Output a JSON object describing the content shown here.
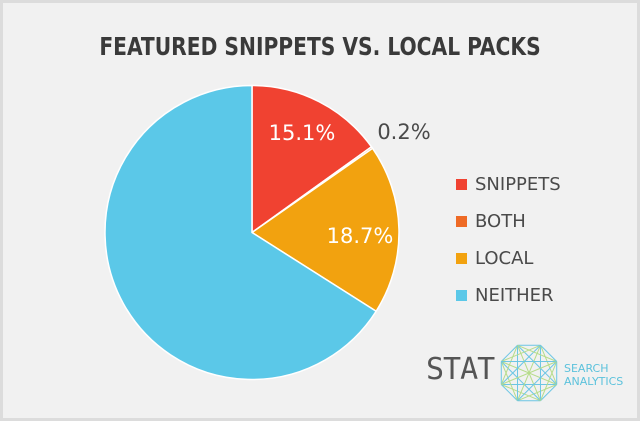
{
  "title": "FEATURED SNIPPETS VS. LOCAL PACKS",
  "chart_data": {
    "type": "pie",
    "title": "FEATURED SNIPPETS VS. LOCAL PACKS",
    "categories": [
      "SNIPPETS",
      "BOTH",
      "LOCAL",
      "NEITHER"
    ],
    "values": [
      15.1,
      0.2,
      18.7,
      66.0
    ],
    "colors": [
      "#f04231",
      "#ee6a25",
      "#f2a20f",
      "#5bc8e8"
    ],
    "data_labels": [
      "15.1%",
      "0.2%",
      "18.7%",
      ""
    ],
    "legend_position": "right",
    "start_angle": "top, clockwise"
  },
  "legend": [
    {
      "label": "SNIPPETS",
      "color": "#f04231"
    },
    {
      "label": "BOTH",
      "color": "#ee6a25"
    },
    {
      "label": "LOCAL",
      "color": "#f2a20f"
    },
    {
      "label": "NEITHER",
      "color": "#5bc8e8"
    }
  ],
  "labels": {
    "snippets": "15.1%",
    "both": "0.2%",
    "local": "18.7%"
  },
  "logo": {
    "name": "STAT",
    "line1": "SEARCH",
    "line2": "ANALYTICS"
  }
}
